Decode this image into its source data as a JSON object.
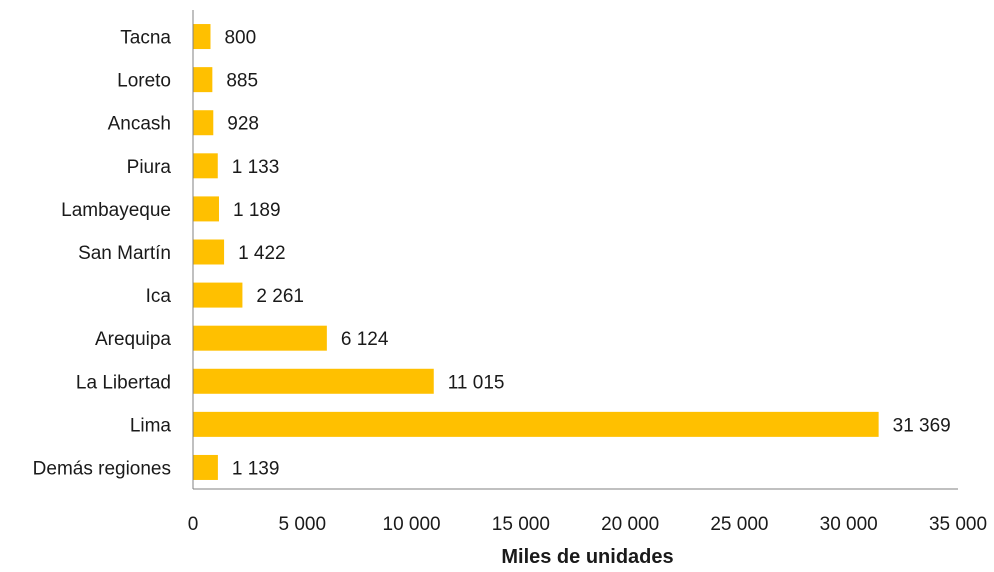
{
  "chart_data": {
    "type": "bar",
    "orientation": "horizontal",
    "categories": [
      "Tacna",
      "Loreto",
      "Ancash",
      "Piura",
      "Lambayeque",
      "San Martín",
      "Ica",
      "Arequipa",
      "La Libertad",
      "Lima",
      "Demás regiones"
    ],
    "values": [
      800,
      885,
      928,
      1133,
      1189,
      1422,
      2261,
      6124,
      11015,
      31369,
      1139
    ],
    "value_labels": [
      "800",
      "885",
      "928",
      "1 133",
      "1 189",
      "1 422",
      "2 261",
      "6 124",
      "11 015",
      "31 369",
      "1 139"
    ],
    "xlabel": "Miles de unidades",
    "ylabel": "",
    "xlim": [
      0,
      35000
    ],
    "x_ticks": [
      0,
      5000,
      10000,
      15000,
      20000,
      25000,
      30000,
      35000
    ],
    "x_tick_labels": [
      "0",
      "5 000",
      "10 000",
      "15 000",
      "20 000",
      "25 000",
      "30 000",
      "35 000"
    ],
    "bar_color": "#FFC000",
    "axis_color": "#808080",
    "grid": false,
    "legend": "none"
  }
}
